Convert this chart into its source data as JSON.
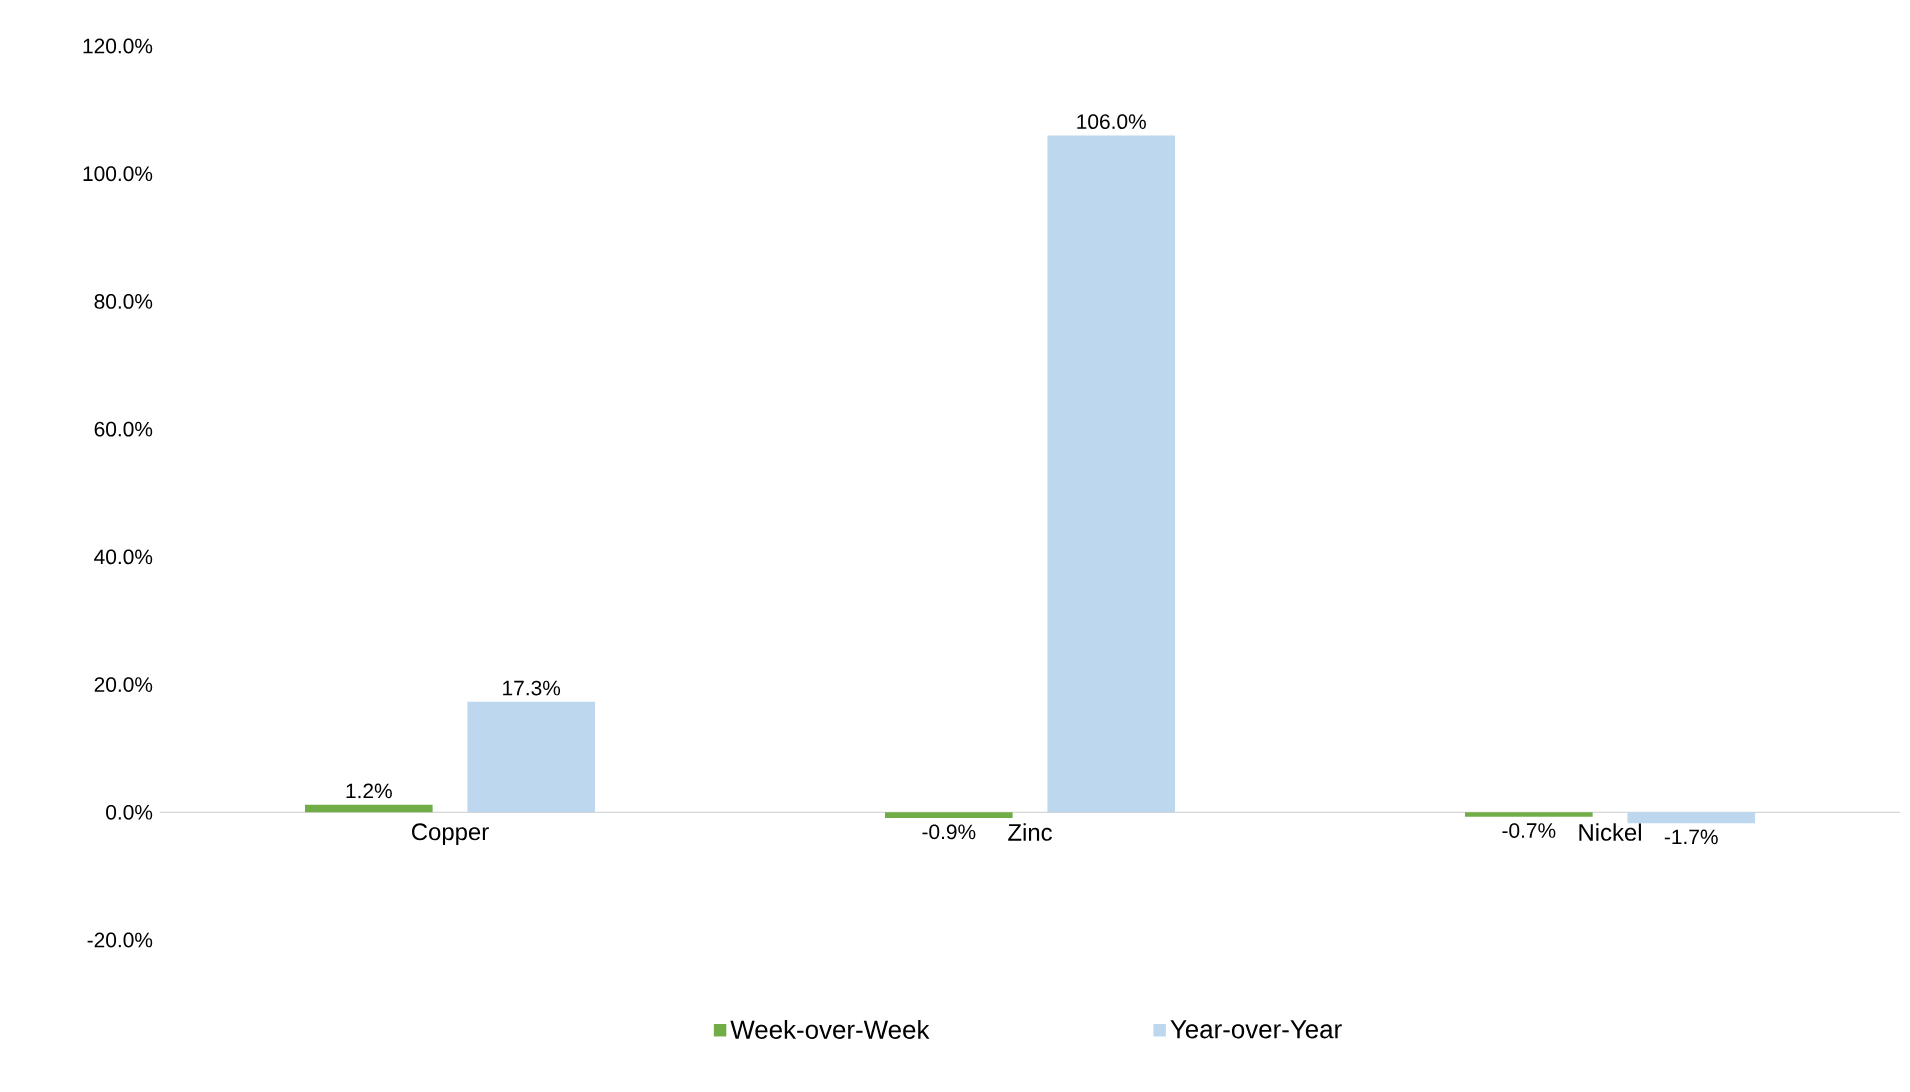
{
  "chart_data": {
    "type": "bar",
    "categories": [
      "Copper",
      "Zinc",
      "Nickel"
    ],
    "series": [
      {
        "name": "Week-over-Week",
        "color": "#70ad47",
        "values": [
          1.2,
          -0.9,
          -0.7
        ],
        "value_labels": [
          "1.2%",
          "-0.9%",
          "-0.7%"
        ]
      },
      {
        "name": "Year-over-Year",
        "color": "#bdd7ee",
        "values": [
          17.3,
          106.0,
          -1.7
        ],
        "value_labels": [
          "17.3%",
          "106.0%",
          "-1.7%"
        ]
      }
    ],
    "ylim": [
      -20,
      120
    ],
    "yticks": [
      {
        "value": -20,
        "label": "-20.0%"
      },
      {
        "value": 0,
        "label": "0.0%"
      },
      {
        "value": 20,
        "label": "20.0%"
      },
      {
        "value": 40,
        "label": "40.0%"
      },
      {
        "value": 60,
        "label": "60.0%"
      },
      {
        "value": 80,
        "label": "80.0%"
      },
      {
        "value": 100,
        "label": "100.0%"
      },
      {
        "value": 120,
        "label": "120.0%"
      }
    ],
    "legend": "bottom"
  }
}
